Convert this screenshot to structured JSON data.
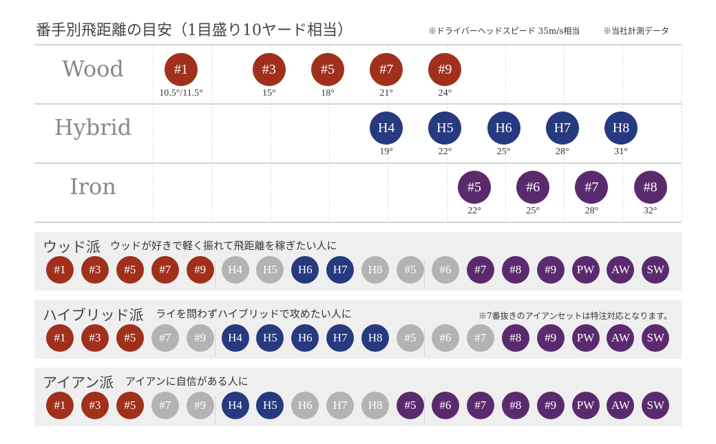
{
  "header": {
    "title": "番手別飛距離の目安（1目盛り10ヤード相当）",
    "note1": "※ドライバーヘッドスピード 35m/s相当",
    "note2": "※当社計測データ"
  },
  "colors": {
    "wood": "#a0301c",
    "hybrid": "#27397f",
    "iron": "#5b2a6e",
    "off": "#b3b3b3"
  },
  "chart_data": {
    "type": "scatter",
    "x_unit": "10 yards per gridline",
    "rows": [
      {
        "name": "Wood",
        "kind": "wood",
        "clubs": [
          {
            "label": "#1",
            "loft": "10.5°/11.5°",
            "pos": 0
          },
          {
            "label": "#3",
            "loft": "15°",
            "pos": 3
          },
          {
            "label": "#5",
            "loft": "18°",
            "pos": 5
          },
          {
            "label": "#7",
            "loft": "21°",
            "pos": 7
          },
          {
            "label": "#9",
            "loft": "24°",
            "pos": 9
          }
        ]
      },
      {
        "name": "Hybrid",
        "kind": "hybrid",
        "clubs": [
          {
            "label": "H4",
            "loft": "19°",
            "pos": 7
          },
          {
            "label": "H5",
            "loft": "22°",
            "pos": 9
          },
          {
            "label": "H6",
            "loft": "25°",
            "pos": 11
          },
          {
            "label": "H7",
            "loft": "28°",
            "pos": 13
          },
          {
            "label": "H8",
            "loft": "31°",
            "pos": 15
          }
        ]
      },
      {
        "name": "Iron",
        "kind": "iron",
        "clubs": [
          {
            "label": "#5",
            "loft": "22°",
            "pos": 10
          },
          {
            "label": "#6",
            "loft": "25°",
            "pos": 12
          },
          {
            "label": "#7",
            "loft": "28°",
            "pos": 14
          },
          {
            "label": "#8",
            "loft": "32°",
            "pos": 16
          }
        ]
      }
    ]
  },
  "sets_clubs": [
    {
      "label": "#1",
      "kind": "wood"
    },
    {
      "label": "#3",
      "kind": "wood"
    },
    {
      "label": "#5",
      "kind": "wood"
    },
    {
      "label": "#7",
      "kind": "wood"
    },
    {
      "label": "#9",
      "kind": "wood"
    },
    {
      "label": "H4",
      "kind": "hybrid"
    },
    {
      "label": "H5",
      "kind": "hybrid"
    },
    {
      "label": "H6",
      "kind": "hybrid"
    },
    {
      "label": "H7",
      "kind": "hybrid"
    },
    {
      "label": "H8",
      "kind": "hybrid"
    },
    {
      "label": "#5",
      "kind": "iron"
    },
    {
      "label": "#6",
      "kind": "iron"
    },
    {
      "label": "#7",
      "kind": "iron"
    },
    {
      "label": "#8",
      "kind": "iron"
    },
    {
      "label": "#9",
      "kind": "iron"
    },
    {
      "label": "PW",
      "kind": "iron"
    },
    {
      "label": "AW",
      "kind": "iron"
    },
    {
      "label": "SW",
      "kind": "iron"
    }
  ],
  "sets": [
    {
      "title": "ウッド派",
      "subtitle": "ウッドが好きで軽く振れて飛距離を稼ぎたい人に",
      "note": "",
      "included": [
        1,
        1,
        1,
        1,
        1,
        0,
        0,
        1,
        1,
        0,
        0,
        0,
        1,
        1,
        1,
        1,
        1,
        1
      ]
    },
    {
      "title": "ハイブリッド派",
      "subtitle": "ライを問わずハイブリッドで攻めたい人に",
      "note": "※7番抜きのアイアンセットは特注対応となります。",
      "included": [
        1,
        1,
        1,
        0,
        0,
        1,
        1,
        1,
        1,
        1,
        0,
        0,
        0,
        1,
        1,
        1,
        1,
        1
      ]
    },
    {
      "title": "アイアン派",
      "subtitle": "アイアンに自信がある人に",
      "note": "",
      "included": [
        1,
        1,
        1,
        0,
        0,
        1,
        1,
        0,
        0,
        0,
        1,
        1,
        1,
        1,
        1,
        1,
        1,
        1
      ]
    }
  ]
}
